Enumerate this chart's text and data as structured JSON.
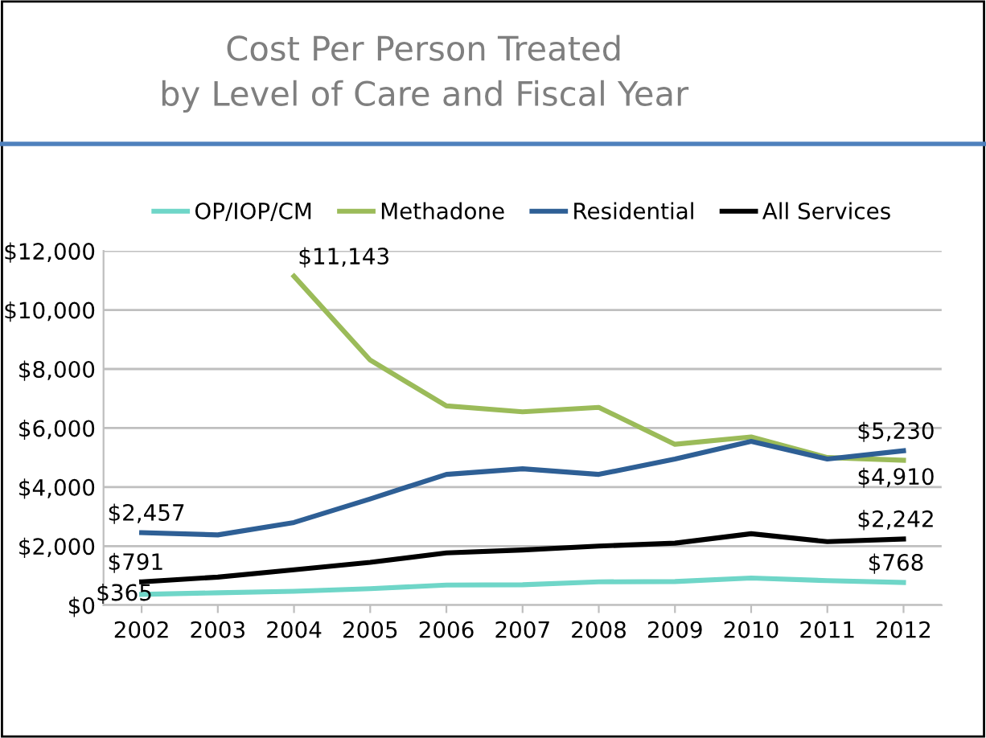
{
  "chart_data": {
    "type": "line",
    "title": "Cost Per Person Treated\nby Level of Care and Fiscal Year",
    "categories": [
      "2002",
      "2003",
      "2004",
      "2005",
      "2006",
      "2007",
      "2008",
      "2009",
      "2010",
      "2011",
      "2012"
    ],
    "series": [
      {
        "name": "OP/IOP/CM",
        "color": "#6fd6c8",
        "values": [
          365,
          420,
          470,
          560,
          680,
          690,
          790,
          800,
          920,
          830,
          768
        ],
        "value_labels": [
          "$365",
          null,
          null,
          null,
          null,
          null,
          null,
          null,
          null,
          null,
          "$768"
        ]
      },
      {
        "name": "Methadone",
        "color": "#9bbb59",
        "values": [
          null,
          null,
          11143,
          8300,
          6750,
          6550,
          6700,
          5450,
          5700,
          5000,
          4910
        ],
        "value_labels": [
          null,
          null,
          "$11,143",
          null,
          null,
          null,
          null,
          null,
          null,
          null,
          "$4,910"
        ]
      },
      {
        "name": "Residential",
        "color": "#2e5f95",
        "values": [
          2457,
          2380,
          2800,
          3600,
          4430,
          4620,
          4430,
          4950,
          5550,
          4950,
          5230
        ],
        "value_labels": [
          "$2,457",
          null,
          null,
          null,
          null,
          null,
          null,
          null,
          null,
          null,
          "$5,230"
        ]
      },
      {
        "name": "All Services",
        "color": "#000000",
        "values": [
          791,
          950,
          1200,
          1450,
          1770,
          1870,
          2000,
          2100,
          2420,
          2150,
          2242
        ],
        "value_labels": [
          "$791",
          null,
          null,
          null,
          null,
          null,
          null,
          null,
          null,
          null,
          "$2,242"
        ]
      }
    ],
    "ylim": [
      0,
      12000
    ],
    "yticks": [
      {
        "value": 0,
        "label": "$0"
      },
      {
        "value": 2000,
        "label": "$2,000"
      },
      {
        "value": 4000,
        "label": "$4,000"
      },
      {
        "value": 6000,
        "label": "$6,000"
      },
      {
        "value": 8000,
        "label": "$8,000"
      },
      {
        "value": 10000,
        "label": "$10,000"
      },
      {
        "value": 12000,
        "label": "$12,000"
      }
    ],
    "grid": "y",
    "legend": "top",
    "marker": "none",
    "line_style": "solid"
  }
}
